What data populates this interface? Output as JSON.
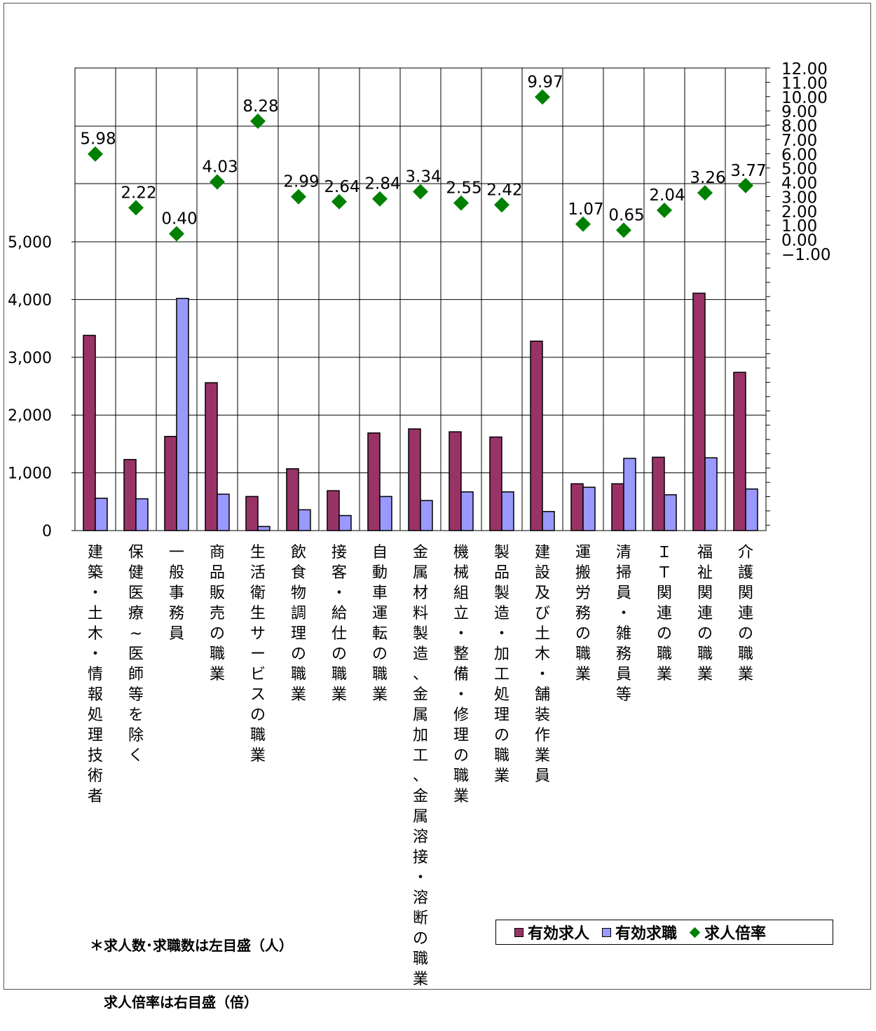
{
  "chart_data": {
    "type": "bar",
    "categories": [
      "建築・土木・情報処理技術者",
      "保健医療~医師等を除く",
      "一般事務員",
      "商品販売の職業",
      "生活衛生サービスの職業",
      "飲食物調理の職業",
      "接客・給仕の職業",
      "自動車運転の職業",
      "金属材料製造、金属加工、金属溶接・溶断の職業",
      "機械組立・整備・修理の職業",
      "製品製造・加工処理の職業",
      "建設及び土木・舗装作業員",
      "運搬労務の職業",
      "清掃員・雑務員等",
      "ＩＴ関連の職業",
      "福祉関連の職業",
      "介護関連の職業"
    ],
    "series": [
      {
        "name": "有効求人",
        "type": "bar",
        "axis": "left",
        "color": "#993366",
        "values": [
          3380,
          1230,
          1630,
          2560,
          590,
          1070,
          690,
          1690,
          1760,
          1710,
          1620,
          3280,
          810,
          810,
          1270,
          4110,
          2740
        ]
      },
      {
        "name": "有効求職",
        "type": "bar",
        "axis": "left",
        "color": "#9999ff",
        "values": [
          560,
          550,
          4020,
          630,
          70,
          360,
          260,
          590,
          520,
          670,
          670,
          330,
          750,
          1250,
          620,
          1260,
          720
        ]
      },
      {
        "name": "求人倍率",
        "type": "scatter",
        "axis": "right",
        "color": "#008000",
        "marker": "diamond",
        "values": [
          5.98,
          2.22,
          0.4,
          4.03,
          8.28,
          2.99,
          2.64,
          2.84,
          3.34,
          2.55,
          2.42,
          9.97,
          1.07,
          0.65,
          2.04,
          3.26,
          3.77
        ],
        "labels": [
          "5.98",
          "2.22",
          "0.40",
          "4.03",
          "8.28",
          "2.99",
          "2.64",
          "2.84",
          "3.34",
          "2.55",
          "2.42",
          "9.97",
          "1.07",
          "0.65",
          "2.04",
          "3.26",
          "3.77"
        ]
      }
    ],
    "left_axis": {
      "ylim": [
        0,
        5000
      ],
      "tick_values": [
        0,
        1000,
        2000,
        3000,
        4000,
        5000
      ],
      "tick_labels": [
        "0",
        "1,000",
        "2,000",
        "3,000",
        "4,000",
        "5,000"
      ]
    },
    "right_axis": {
      "ylim": [
        -1,
        12
      ],
      "tick_values": [
        -1,
        0,
        1,
        2,
        3,
        4,
        5,
        6,
        7,
        8,
        9,
        10,
        11,
        12
      ],
      "tick_labels": [
        "−1.00",
        "0.00",
        "1.00",
        "2.00",
        "3.00",
        "4.00",
        "5.00",
        "6.00",
        "7.00",
        "8.00",
        "9.00",
        "10.00",
        "11.00",
        "12.00"
      ]
    },
    "grid": true,
    "legend_position": "bottom-right"
  },
  "note": {
    "line1": "＊求人数･求職数は左目盛（人）",
    "line2": "求人倍率は右目盛（倍）"
  },
  "legend": {
    "items": [
      "有効求人",
      "有効求職",
      "求人倍率"
    ]
  }
}
